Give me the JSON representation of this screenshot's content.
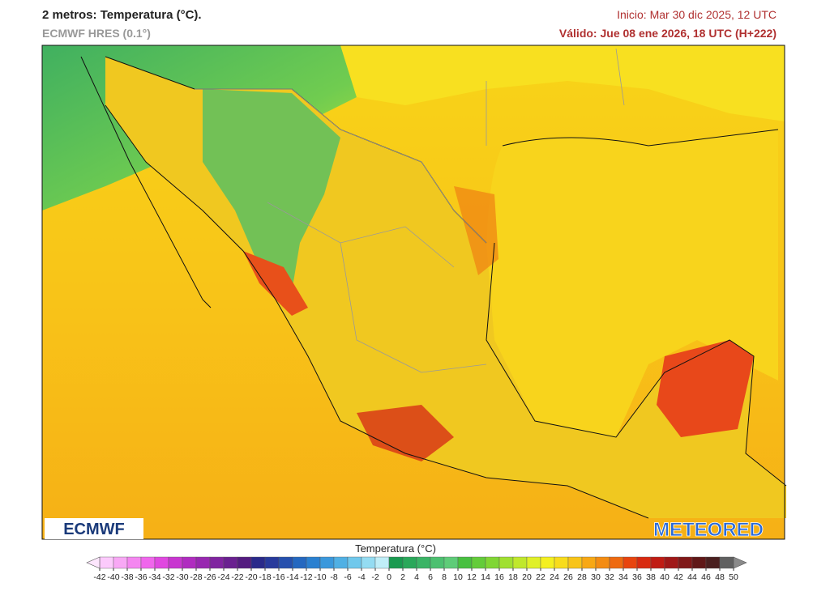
{
  "header": {
    "title": "2 metros: Temperatura (°C).",
    "model": "ECMWF HRES (0.1°)",
    "init": "Inicio: Mar 30 dic 2025, 12 UTC",
    "valid": "Válido: Jue 08 ene 2026, 18 UTC (H+222)"
  },
  "logos": {
    "left": "ECMWF",
    "right": "METEORED"
  },
  "colorbar": {
    "title": "Temperatura (°C)",
    "ticks": [
      -42,
      -40,
      -38,
      -36,
      -34,
      -32,
      -30,
      -28,
      -26,
      -24,
      -22,
      -20,
      -18,
      -16,
      -14,
      -12,
      -10,
      -8,
      -6,
      -4,
      -2,
      0,
      2,
      4,
      6,
      8,
      10,
      12,
      14,
      16,
      18,
      20,
      22,
      24,
      26,
      28,
      30,
      32,
      34,
      36,
      38,
      40,
      42,
      44,
      46,
      48,
      50
    ],
    "colors": [
      "#fccafc",
      "#f8a8f5",
      "#f486f0",
      "#f066ec",
      "#e048e0",
      "#c836d0",
      "#b02cc0",
      "#9828b0",
      "#8024a0",
      "#6a2090",
      "#541c80",
      "#2a2a8a",
      "#283a9c",
      "#2650ae",
      "#2468c0",
      "#2a80d0",
      "#3a98dc",
      "#50b0e4",
      "#70c8ec",
      "#94dcf2",
      "#c0eef8",
      "#1a9a50",
      "#2aa85a",
      "#3ab466",
      "#4cc070",
      "#5ecc78",
      "#48c040",
      "#64cc3a",
      "#80d634",
      "#a0e030",
      "#c0e82c",
      "#e0f028",
      "#f4f020",
      "#f8dc1c",
      "#f8c418",
      "#f8a814",
      "#f48c12",
      "#ee6a10",
      "#e8440e",
      "#d82a10",
      "#c01c14",
      "#a01818",
      "#801818",
      "#601818",
      "#4a2020",
      "#606060"
    ],
    "low_color": "#fde6fd",
    "high_color": "#8a8a8a"
  }
}
